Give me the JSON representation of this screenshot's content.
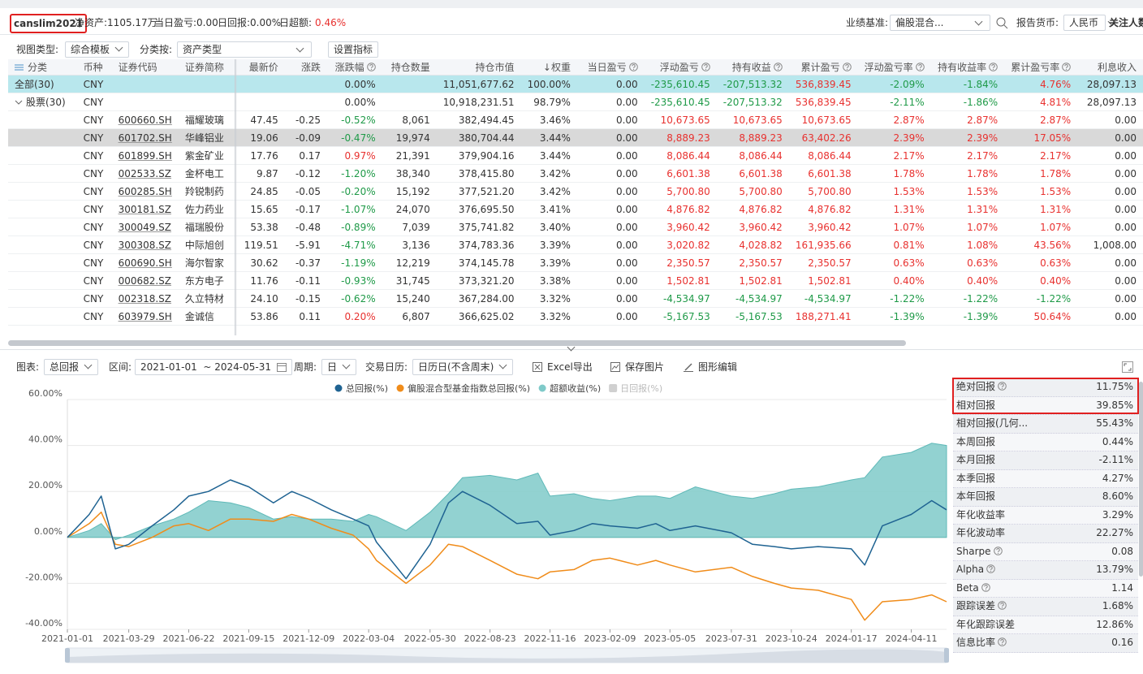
{
  "header": {
    "account": "canslim2021",
    "net_assets": "净资产:1105.17万",
    "daily_pnl": "当日盈亏:0.00",
    "daily_return": "日回报:0.00%",
    "daily_excess_label": "日超额:",
    "daily_excess": "0.46%",
    "benchmark_label": "业绩基准:",
    "benchmark": "偏股混合...",
    "currency_label": "报告货币:",
    "currency": "人民币",
    "followers": "关注人数"
  },
  "toolbar": {
    "view_label": "视图类型:",
    "view": "综合模板",
    "group_label": "分类按:",
    "group": "资产类型",
    "button": "设置指标"
  },
  "table": {
    "columns": [
      "分类",
      "币种",
      "证券代码",
      "证券简称",
      "最新价",
      "涨跌",
      "涨跌幅",
      "持仓数量",
      "持仓市值",
      "↓权重",
      "当日盈亏",
      "浮动盈亏",
      "持有收益",
      "累计盈亏",
      "浮动盈亏率",
      "持有收益率",
      "累计盈亏率",
      "利息收入"
    ],
    "rows": [
      [
        "全部(30)",
        "CNY",
        null,
        null,
        null,
        null,
        "0.00%",
        null,
        "11,051,677.62",
        "100.00%",
        "0.00",
        "-235,610.45",
        "-207,513.32",
        "536,839.45",
        "-2.09%",
        "-1.84%",
        "4.76%",
        "28,097.13"
      ],
      [
        "股票(30)",
        "CNY",
        null,
        null,
        null,
        null,
        "0.00%",
        null,
        "10,918,231.51",
        "98.79%",
        "0.00",
        "-235,610.45",
        "-207,513.32",
        "536,839.45",
        "-2.11%",
        "-1.86%",
        "4.81%",
        "28,097.13"
      ],
      [
        null,
        "CNY",
        "600660.SH",
        "福耀玻璃",
        "47.45",
        "-0.25",
        "-0.52%",
        "8,061",
        "382,494.45",
        "3.46%",
        "0.00",
        "10,673.65",
        "10,673.65",
        "10,673.65",
        "2.87%",
        "2.87%",
        "2.87%",
        "0.00"
      ],
      [
        null,
        "CNY",
        "601702.SH",
        "华峰铝业",
        "19.06",
        "-0.09",
        "-0.47%",
        "19,974",
        "380,704.44",
        "3.44%",
        "0.00",
        "8,889.23",
        "8,889.23",
        "63,402.26",
        "2.39%",
        "2.39%",
        "17.05%",
        "0.00"
      ],
      [
        null,
        "CNY",
        "601899.SH",
        "紫金矿业",
        "17.76",
        "0.17",
        "0.97%",
        "21,391",
        "379,904.16",
        "3.44%",
        "0.00",
        "8,086.44",
        "8,086.44",
        "8,086.44",
        "2.17%",
        "2.17%",
        "2.17%",
        "0.00"
      ],
      [
        null,
        "CNY",
        "002533.SZ",
        "金杯电工",
        "9.87",
        "-0.12",
        "-1.20%",
        "38,340",
        "378,415.80",
        "3.42%",
        "0.00",
        "6,601.38",
        "6,601.38",
        "6,601.38",
        "1.78%",
        "1.78%",
        "1.78%",
        "0.00"
      ],
      [
        null,
        "CNY",
        "600285.SH",
        "羚锐制药",
        "24.85",
        "-0.05",
        "-0.20%",
        "15,192",
        "377,521.20",
        "3.42%",
        "0.00",
        "5,700.80",
        "5,700.80",
        "5,700.80",
        "1.53%",
        "1.53%",
        "1.53%",
        "0.00"
      ],
      [
        null,
        "CNY",
        "300181.SZ",
        "佐力药业",
        "15.65",
        "-0.17",
        "-1.07%",
        "24,070",
        "376,695.50",
        "3.41%",
        "0.00",
        "4,876.82",
        "4,876.82",
        "4,876.82",
        "1.31%",
        "1.31%",
        "1.31%",
        "0.00"
      ],
      [
        null,
        "CNY",
        "300049.SZ",
        "福瑞股份",
        "53.38",
        "-0.48",
        "-0.89%",
        "7,039",
        "375,741.82",
        "3.40%",
        "0.00",
        "3,960.42",
        "3,960.42",
        "3,960.42",
        "1.07%",
        "1.07%",
        "1.07%",
        "0.00"
      ],
      [
        null,
        "CNY",
        "300308.SZ",
        "中际旭创",
        "119.51",
        "-5.91",
        "-4.71%",
        "3,136",
        "374,783.36",
        "3.39%",
        "0.00",
        "3,020.82",
        "4,028.82",
        "161,935.66",
        "0.81%",
        "1.08%",
        "43.56%",
        "1,008.00"
      ],
      [
        null,
        "CNY",
        "600690.SH",
        "海尔智家",
        "30.62",
        "-0.37",
        "-1.19%",
        "12,219",
        "374,145.78",
        "3.39%",
        "0.00",
        "2,350.57",
        "2,350.57",
        "2,350.57",
        "0.63%",
        "0.63%",
        "0.63%",
        "0.00"
      ],
      [
        null,
        "CNY",
        "000682.SZ",
        "东方电子",
        "11.76",
        "-0.11",
        "-0.93%",
        "31,745",
        "373,321.20",
        "3.38%",
        "0.00",
        "1,502.81",
        "1,502.81",
        "1,502.81",
        "0.40%",
        "0.40%",
        "0.40%",
        "0.00"
      ],
      [
        null,
        "CNY",
        "002318.SZ",
        "久立特材",
        "24.10",
        "-0.15",
        "-0.62%",
        "15,240",
        "367,284.00",
        "3.32%",
        "0.00",
        "-4,534.97",
        "-4,534.97",
        "-4,534.97",
        "-1.22%",
        "-1.22%",
        "-1.22%",
        "0.00"
      ],
      [
        null,
        "CNY",
        "603979.SH",
        "金诚信",
        "53.86",
        "0.11",
        "0.20%",
        "6,807",
        "366,625.02",
        "3.32%",
        "0.00",
        "-5,167.53",
        "-5,167.53",
        "188,271.41",
        "-1.39%",
        "-1.39%",
        "50.64%",
        "0.00"
      ]
    ]
  },
  "chart_toolbar": {
    "chart_label": "图表:",
    "chart": "总回报",
    "range_label": "区间:",
    "range": "2021-01-01  ~ 2024-05-31",
    "period_label": "周期:",
    "period": "日",
    "calendar_label": "交易日历:",
    "calendar": "日历日(不含周末)",
    "excel": "Excel导出",
    "save": "保存图片",
    "edit": "图形编辑"
  },
  "chart_data": {
    "type": "line",
    "x": [
      "2021-01-01",
      "2021-02-01",
      "2021-02-18",
      "2021-03-10",
      "2021-03-29",
      "2021-05-01",
      "2021-06-01",
      "2021-06-22",
      "2021-07-20",
      "2021-08-20",
      "2021-09-15",
      "2021-10-20",
      "2021-11-15",
      "2021-12-09",
      "2022-01-10",
      "2022-02-10",
      "2022-03-04",
      "2022-03-15",
      "2022-04-26",
      "2022-05-30",
      "2022-06-25",
      "2022-07-15",
      "2022-08-23",
      "2022-09-30",
      "2022-10-30",
      "2022-11-16",
      "2022-12-20",
      "2023-01-15",
      "2023-02-09",
      "2023-03-20",
      "2023-04-15",
      "2023-05-05",
      "2023-06-10",
      "2023-07-31",
      "2023-08-30",
      "2023-09-30",
      "2023-10-24",
      "2023-12-01",
      "2024-01-17",
      "2024-02-05",
      "2024-03-01",
      "2024-04-11",
      "2024-05-10",
      "2024-05-31"
    ],
    "series": [
      {
        "name": "超额收益(%)",
        "color": "#7fcac9",
        "type": "area",
        "values": [
          0,
          3,
          6,
          -1,
          1,
          5,
          8,
          11,
          16,
          15,
          13,
          8,
          9,
          8,
          8,
          7,
          10,
          9,
          3,
          11,
          19,
          26,
          27,
          25,
          28,
          18,
          19,
          17,
          16,
          18,
          18,
          17,
          22,
          18,
          17,
          19,
          21,
          22,
          25,
          26,
          35,
          37,
          41,
          40
        ]
      },
      {
        "name": "偏股混合型基金指数总回报(%)",
        "color": "#f08c1a",
        "type": "line",
        "values": [
          0,
          6,
          11,
          -3,
          -4,
          0,
          5,
          6,
          3,
          8,
          8,
          7,
          10,
          8,
          4,
          1,
          -5,
          -10,
          -20,
          -12,
          -3,
          -4,
          -10,
          -16,
          -18,
          -15,
          -14,
          -10,
          -9,
          -12,
          -10,
          -12,
          -15,
          -13,
          -17,
          -20,
          -22,
          -23,
          -27,
          -36,
          -28,
          -27,
          -25,
          -28
        ]
      },
      {
        "name": "总回报(%)",
        "color": "#1f6392",
        "type": "line",
        "values": [
          0,
          10,
          18,
          -5,
          -3,
          5,
          12,
          18,
          20,
          25,
          22,
          15,
          20,
          17,
          12,
          8,
          5,
          -2,
          -18,
          -3,
          15,
          20,
          14,
          6,
          7,
          1,
          3,
          6,
          5,
          4,
          6,
          3,
          5,
          2,
          -3,
          -4,
          -5,
          -4,
          -5,
          -12,
          5,
          10,
          16,
          12
        ]
      },
      {
        "name": "日回报(%)",
        "color": "#d0d0d0",
        "type": "line",
        "visible": false,
        "values": [
          null,
          null,
          null,
          null,
          null,
          null,
          null,
          null,
          null,
          null,
          null,
          null,
          null,
          null,
          null,
          null,
          null,
          null,
          null,
          null,
          null,
          null,
          null,
          null,
          null,
          null,
          null,
          null,
          null,
          null,
          null,
          null,
          null,
          null,
          null,
          null,
          null,
          null,
          null,
          null,
          null,
          null,
          null,
          null
        ]
      }
    ],
    "legend_order": [
      2,
      1,
      0,
      3
    ],
    "xlim": [
      "2021-01-01",
      "2024-05-31"
    ],
    "xticks": [
      "2021-01-01",
      "2021-03-29",
      "2021-06-22",
      "2021-09-15",
      "2021-12-09",
      "2022-03-04",
      "2022-05-30",
      "2022-08-23",
      "2022-11-16",
      "2023-02-09",
      "2023-05-05",
      "2023-07-31",
      "2023-10-24",
      "2024-01-17",
      "2024-04-11"
    ],
    "ylim": [
      -40,
      60
    ],
    "yticks": [
      {
        "value": -40,
        "label": "-40.00%"
      },
      {
        "value": -20,
        "label": "-20.00%"
      },
      {
        "value": 0,
        "label": "0.00%"
      },
      {
        "value": 20,
        "label": "20.00%"
      },
      {
        "value": 40,
        "label": "40.00%"
      },
      {
        "value": 60,
        "label": "60.00%"
      }
    ],
    "grid": true
  },
  "metrics": [
    {
      "label": "绝对回报",
      "value": "11.75%"
    },
    {
      "label": "相对回报",
      "value": "39.85%"
    },
    {
      "label": "相对回报(几何...",
      "value": "55.43%"
    },
    {
      "label": "本周回报",
      "value": "0.44%"
    },
    {
      "label": "本月回报",
      "value": "-2.11%"
    },
    {
      "label": "本季回报",
      "value": "4.27%"
    },
    {
      "label": "本年回报",
      "value": "8.60%"
    },
    {
      "label": "年化收益率",
      "value": "3.29%"
    },
    {
      "label": "年化波动率",
      "value": "22.27%"
    },
    {
      "label": "Sharpe",
      "value": "0.08"
    },
    {
      "label": "Alpha",
      "value": "13.79%"
    },
    {
      "label": "Beta",
      "value": "1.14"
    },
    {
      "label": "跟踪误差",
      "value": "1.68%"
    },
    {
      "label": "年化跟踪误差",
      "value": "12.86%"
    },
    {
      "label": "信息比率",
      "value": "0.16"
    }
  ]
}
